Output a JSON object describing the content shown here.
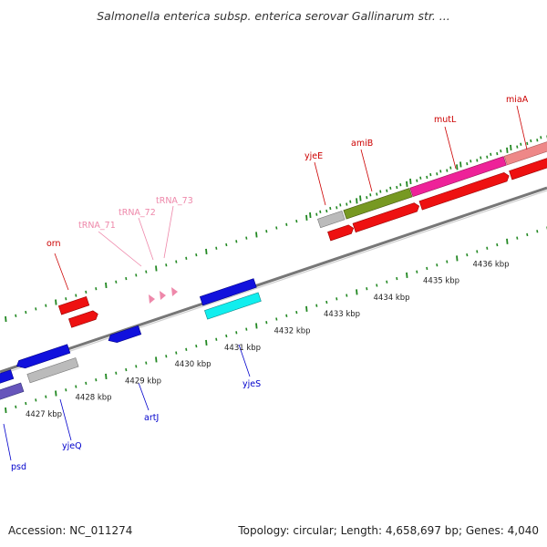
{
  "title": "Salmonella enterica subsp. enterica serovar Gallinarum str. ...",
  "footer": {
    "accession": "Accession: NC_011274",
    "topology": "Topology: circular; Length: 4,658,697 bp; Genes: 4,040"
  },
  "scale": {
    "labels": [
      "4427 kbp",
      "4428 kbp",
      "4429 kbp",
      "4430 kbp",
      "4431 kbp",
      "4432 kbp",
      "4433 kbp",
      "4434 kbp",
      "4435 kbp",
      "4436 kbp"
    ]
  },
  "top_gene_labels": [
    {
      "name": "orn",
      "color": "#cc0000"
    },
    {
      "name": "yjeE",
      "color": "#cc0000"
    },
    {
      "name": "amiB",
      "color": "#cc0000"
    },
    {
      "name": "mutL",
      "color": "#cc0000"
    },
    {
      "name": "miaA",
      "color": "#cc0000"
    },
    {
      "name": "tRNA_71",
      "color": "#ee88aa"
    },
    {
      "name": "tRNA_72",
      "color": "#ee88aa"
    },
    {
      "name": "tRNA_73",
      "color": "#ee88aa"
    }
  ],
  "bottom_gene_labels": [
    {
      "name": "psd",
      "color": "#0000cc"
    },
    {
      "name": "yjeQ",
      "color": "#0000cc"
    },
    {
      "name": "artJ",
      "color": "#0000cc"
    },
    {
      "name": "yjeS",
      "color": "#0000cc"
    }
  ],
  "colors": {
    "red": "#ee1111",
    "pink": "#ee2299",
    "salmon": "#ee8888",
    "olive": "#779922",
    "blue": "#1111dd",
    "cyan": "#11eeee",
    "gray": "#bbbbbb",
    "purple": "#6655bb",
    "backbone": "#888888",
    "tick": "#228822"
  }
}
